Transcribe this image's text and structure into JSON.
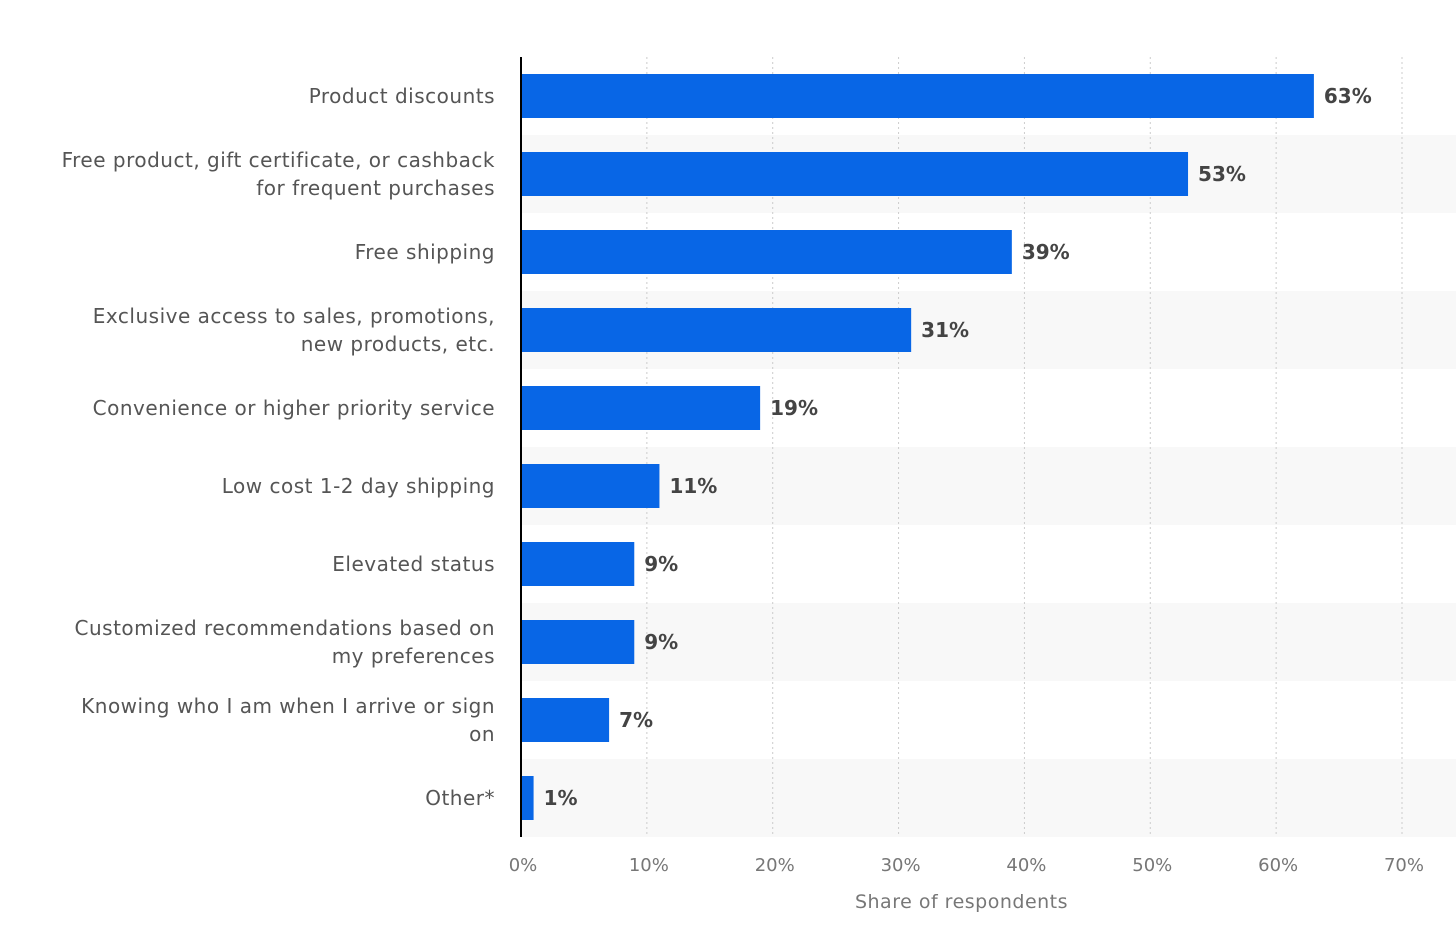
{
  "chart_data": {
    "type": "bar",
    "orientation": "horizontal",
    "categories": [
      [
        "Product discounts"
      ],
      [
        "Free product, gift certificate, or cashback",
        "for frequent purchases"
      ],
      [
        "Free shipping"
      ],
      [
        "Exclusive access to sales, promotions,",
        "new products, etc."
      ],
      [
        "Convenience or higher priority service"
      ],
      [
        "Low cost 1-2 day shipping"
      ],
      [
        "Elevated status"
      ],
      [
        "Customized recommendations based on",
        "my preferences"
      ],
      [
        "Knowing who I am when I arrive or sign",
        "on"
      ],
      [
        "Other*"
      ]
    ],
    "values": [
      63,
      53,
      39,
      31,
      19,
      11,
      9,
      9,
      7,
      1
    ],
    "value_labels": [
      "63%",
      "53%",
      "39%",
      "31%",
      "19%",
      "11%",
      "9%",
      "9%",
      "7%",
      "1%"
    ],
    "xlim": [
      0,
      70
    ],
    "ticks": [
      0,
      10,
      20,
      30,
      40,
      50,
      60,
      70
    ],
    "tick_labels": [
      "0%",
      "10%",
      "20%",
      "30%",
      "40%",
      "50%",
      "60%",
      "70%"
    ],
    "xlabel": "Share of respondents",
    "ylabel": "",
    "title": "",
    "grid": true,
    "legend": "none",
    "colors": {
      "bar": "#0866e6",
      "band": "#f8f8f8",
      "grid": "#cccccc",
      "axis": "#000000"
    }
  }
}
